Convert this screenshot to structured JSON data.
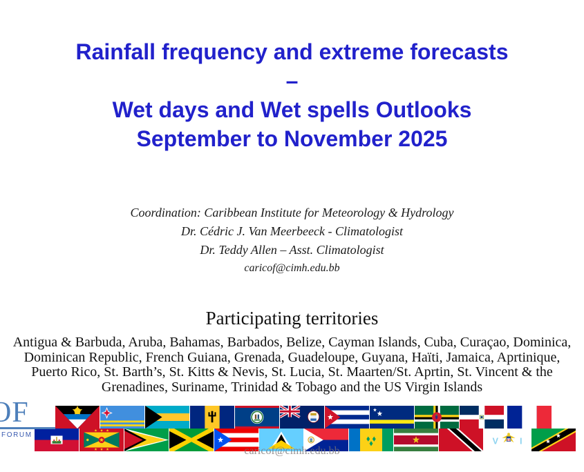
{
  "slide": {
    "title_lines": [
      "Rainfall frequency and extreme forecasts",
      "–",
      "Wet days and Wet spells Outlooks",
      "September to November 2025"
    ],
    "title_color": "#2121cb",
    "coordination": {
      "line1": "Coordination: Caribbean Institute for Meteorology & Hydrology",
      "line2": "Dr. Cédric J. Van Meerbeeck - Climatologist",
      "line3": "Dr. Teddy Allen – Asst. Climatologist",
      "email": "caricof@cimh.edu.bb"
    },
    "territories": {
      "heading": "Participating territories",
      "lines": [
        "Antigua & Barbuda, Aruba, Bahamas, Barbados, Belize, Cayman Islands, Cuba, Curaçao, Dominica,",
        "Dominican Republic, French Guiana, Grenada, Guadeloupe, Guyana, Haïti, Jamaica, Aprtinique,",
        "Puerto Rico, St. Barth’s, St. Kitts & Nevis, St. Lucia, St. Maarten/St. Aprtin, St. Vincent & the",
        "Grenadines, Suriname, Trinidad & Tobago and the US Virgin Islands"
      ]
    },
    "logo": {
      "text_large": "OF",
      "text_small": "FORUM",
      "color": "#4d7fba"
    },
    "footer_email": "caricof@cimh.edu.bb",
    "flags": {
      "top_row": [
        "antigua-barbuda",
        "aruba",
        "bahamas",
        "barbados",
        "belize",
        "cayman-islands",
        "cuba",
        "curacao",
        "dominica",
        "dominican-republic",
        "france"
      ],
      "bottom_row": [
        "haiti",
        "grenada",
        "guyana",
        "jamaica",
        "puerto-rico",
        "st-lucia",
        "st-maarten",
        "st-vincent-grenadines",
        "suriname",
        "trinidad-tobago",
        "us-virgin-islands",
        "st-kitts-nevis"
      ]
    }
  }
}
